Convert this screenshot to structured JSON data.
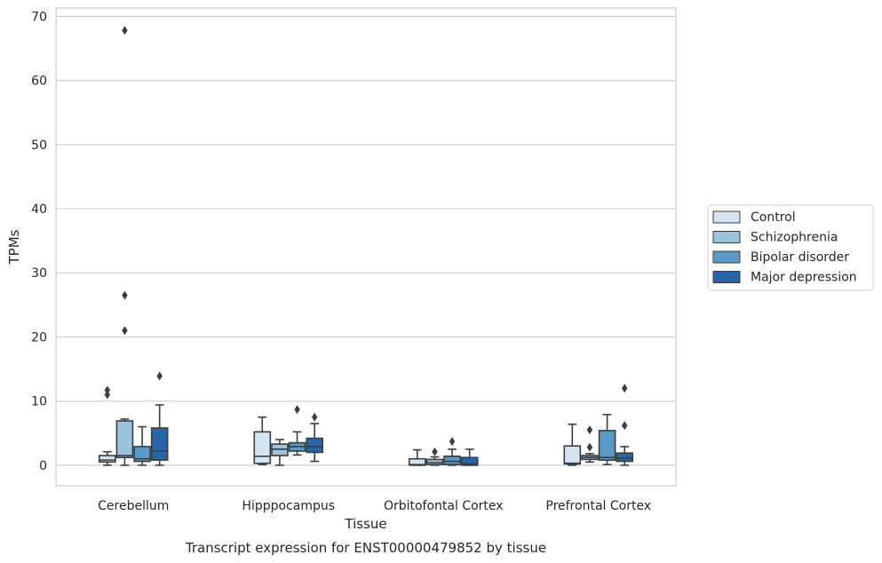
{
  "chart_data": {
    "type": "box",
    "title": "Transcript expression for ENST00000479852 by tissue",
    "xlabel": "Tissue",
    "ylabel": "TPMs",
    "ylim": [
      -3.2,
      71.3
    ],
    "yticks": [
      0,
      10,
      20,
      30,
      40,
      50,
      60,
      70
    ],
    "grid": true,
    "legend_position": "right",
    "categories": [
      "Cerebellum",
      "Hipppocampus",
      "Orbitofontal Cortex",
      "Prefrontal Cortex"
    ],
    "series": [
      {
        "name": "Control",
        "color": "#d4e4f3",
        "boxes": [
          {
            "min": 0.0,
            "q1": 0.5,
            "median": 0.8,
            "q3": 1.5,
            "max": 2.1,
            "outliers": [
              11.0,
              11.7
            ]
          },
          {
            "min": 0.1,
            "q1": 0.3,
            "median": 1.4,
            "q3": 5.2,
            "max": 7.5,
            "outliers": []
          },
          {
            "min": 0.0,
            "q1": 0.0,
            "median": 0.1,
            "q3": 1.0,
            "max": 2.4,
            "outliers": []
          },
          {
            "min": 0.0,
            "q1": 0.2,
            "median": 0.3,
            "q3": 3.0,
            "max": 6.4,
            "outliers": []
          }
        ]
      },
      {
        "name": "Schizophrenia",
        "color": "#9ac4de",
        "boxes": [
          {
            "min": 0.0,
            "q1": 1.2,
            "median": 1.5,
            "q3": 6.9,
            "max": 7.2,
            "outliers": [
              21.0,
              26.5,
              67.8
            ]
          },
          {
            "min": 0.0,
            "q1": 1.5,
            "median": 2.5,
            "q3": 3.3,
            "max": 4.0,
            "outliers": []
          },
          {
            "min": 0.0,
            "q1": 0.1,
            "median": 0.4,
            "q3": 0.9,
            "max": 1.3,
            "outliers": [
              2.1
            ]
          },
          {
            "min": 0.5,
            "q1": 0.9,
            "median": 1.2,
            "q3": 1.5,
            "max": 1.8,
            "outliers": [
              2.8,
              5.5
            ]
          }
        ]
      },
      {
        "name": "Bipolar disorder",
        "color": "#5a9ac8",
        "boxes": [
          {
            "min": 0.0,
            "q1": 0.6,
            "median": 1.0,
            "q3": 2.9,
            "max": 6.0,
            "outliers": []
          },
          {
            "min": 1.6,
            "q1": 2.2,
            "median": 2.9,
            "q3": 3.5,
            "max": 5.2,
            "outliers": [
              8.7
            ]
          },
          {
            "min": 0.0,
            "q1": 0.1,
            "median": 0.6,
            "q3": 1.4,
            "max": 2.5,
            "outliers": [
              3.7
            ]
          },
          {
            "min": 0.1,
            "q1": 0.8,
            "median": 1.2,
            "q3": 5.4,
            "max": 7.9,
            "outliers": []
          }
        ]
      },
      {
        "name": "Major depression",
        "color": "#2766a8",
        "boxes": [
          {
            "min": 0.0,
            "q1": 0.8,
            "median": 2.2,
            "q3": 5.8,
            "max": 9.4,
            "outliers": [
              13.9
            ]
          },
          {
            "min": 0.6,
            "q1": 2.0,
            "median": 2.9,
            "q3": 4.2,
            "max": 6.5,
            "outliers": [
              7.5
            ]
          },
          {
            "min": 0.0,
            "q1": 0.0,
            "median": 0.2,
            "q3": 1.2,
            "max": 2.5,
            "outliers": []
          },
          {
            "min": 0.0,
            "q1": 0.6,
            "median": 1.1,
            "q3": 1.9,
            "max": 2.9,
            "outliers": [
              6.2,
              12.0
            ]
          }
        ]
      }
    ]
  }
}
